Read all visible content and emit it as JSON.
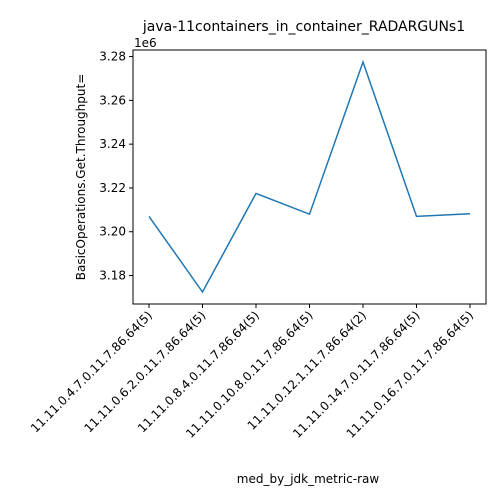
{
  "chart_data": {
    "type": "line",
    "title": "java-11containers_in_container_RADARGUNs1",
    "xlabel": "med_by_jdk_metric-raw",
    "ylabel": "BasicOperations.Get.Throughput=",
    "y_offset_label": "1e6",
    "y_scale_factor": 1000000,
    "categories": [
      "11.11.0.4.7.0.11.7.86.64(5)",
      "11.11.0.6.2.0.11.7.86.64(5)",
      "11.11.0.8.4.0.11.7.86.64(5)",
      "11.11.0.10.8.0.11.7.86.64(5)",
      "11.11.0.12.1.11.7.86.64(2)",
      "11.11.0.14.7.0.11.7.86.64(5)",
      "11.11.0.16.7.0.11.7.86.64(5)"
    ],
    "series": [
      {
        "values": [
          3207000,
          3172500,
          3217500,
          3208000,
          3277500,
          3207000,
          3208200
        ],
        "color": "#1f77b4"
      }
    ],
    "ylim": [
      3167000,
      3283000
    ],
    "yticks": [
      3180000,
      3200000,
      3220000,
      3240000,
      3260000,
      3280000
    ],
    "ytick_labels": [
      "3.18",
      "3.20",
      "3.22",
      "3.24",
      "3.26",
      "3.28"
    ],
    "grid": false,
    "legend": "none"
  }
}
